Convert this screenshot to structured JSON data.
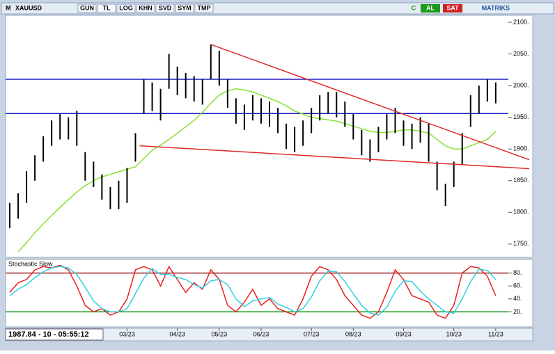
{
  "toolbar": {
    "logo": "M",
    "symbol": "XAUUSD",
    "buttons": [
      "GUN",
      "TL",
      "LOG",
      "KHN",
      "SVD",
      "SYM",
      "TMP"
    ],
    "right_buttons": [
      "C",
      "AL",
      "SAT"
    ],
    "brand": "MATRIKS"
  },
  "status": "1987.84 - 10 - 05:55:12",
  "chart_data": [
    {
      "type": "bar",
      "categories": [
        null,
        null,
        null,
        null,
        null,
        null,
        null,
        null,
        null,
        null,
        null,
        null,
        null,
        null,
        "03/23",
        null,
        null,
        null,
        null,
        null,
        "04/23",
        null,
        null,
        null,
        null,
        "05/23",
        null,
        null,
        null,
        null,
        "06/23",
        null,
        null,
        null,
        null,
        null,
        "07/23",
        null,
        null,
        null,
        null,
        "08/23",
        null,
        null,
        null,
        null,
        null,
        "09/23",
        null,
        null,
        null,
        null,
        null,
        "10/23",
        null,
        null,
        null,
        null,
        "11/23"
      ],
      "xlim": [
        -0.5,
        62
      ],
      "high": [
        1815,
        1830,
        1865,
        1890,
        1920,
        1945,
        1955,
        1950,
        1960,
        1895,
        1880,
        1860,
        1840,
        1850,
        1870,
        1925,
        2010,
        2005,
        1995,
        2050,
        2030,
        2020,
        2015,
        2010,
        2065,
        2055,
        2010,
        1980,
        1970,
        1985,
        1980,
        1975,
        1965,
        1940,
        1935,
        1945,
        1965,
        1985,
        1990,
        1990,
        1975,
        1955,
        1930,
        1915,
        1935,
        1955,
        1965,
        1945,
        1940,
        1950,
        1940,
        1880,
        1845,
        1880,
        1925,
        1985,
        2000,
        2010,
        2005
      ],
      "low": [
        1775,
        1790,
        1815,
        1850,
        1880,
        1905,
        1915,
        1915,
        1905,
        1850,
        1840,
        1820,
        1805,
        1805,
        1815,
        1880,
        1955,
        1960,
        1945,
        1995,
        1985,
        1980,
        1975,
        1970,
        2010,
        2000,
        1965,
        1940,
        1930,
        1945,
        1940,
        1935,
        1925,
        1900,
        1895,
        1905,
        1925,
        1945,
        1955,
        1950,
        1935,
        1915,
        1890,
        1880,
        1895,
        1915,
        1925,
        1905,
        1900,
        1910,
        1880,
        1835,
        1810,
        1840,
        1875,
        1935,
        1955,
        1975,
        1972
      ],
      "ma": {
        "color": "#88e030",
        "values": [
          null,
          1738,
          1752,
          1768,
          1782,
          1795,
          1808,
          1820,
          1832,
          1842,
          1850,
          1856,
          1860,
          1864,
          1868,
          1872,
          1885,
          1898,
          1906,
          1915,
          1925,
          1935,
          1945,
          1958,
          1972,
          1985,
          1992,
          1995,
          1993,
          1990,
          1985,
          1980,
          1975,
          1968,
          1960,
          1955,
          1950,
          1948,
          1946,
          1944,
          1940,
          1936,
          1932,
          1928,
          1926,
          1926,
          1928,
          1930,
          1930,
          1928,
          1925,
          1915,
          1905,
          1900,
          1900,
          1905,
          1910,
          1915,
          1928
        ]
      },
      "bar_color": "#000000",
      "hlines": [
        {
          "value": 2010,
          "color": "#1a1ac8"
        },
        {
          "value": 1956,
          "color": "#1a1ac8"
        }
      ],
      "trendlines": [
        {
          "x": [
            24,
            62
          ],
          "y": [
            2065,
            1883
          ],
          "color": "#e02828"
        },
        {
          "x": [
            15.5,
            62
          ],
          "y": [
            1905,
            1869
          ],
          "color": "#e02828"
        }
      ],
      "ylim": [
        1729,
        2111
      ],
      "yticks": [
        {
          "value": 1750,
          "label": "1750."
        },
        {
          "value": 1800,
          "label": "1800."
        },
        {
          "value": 1850,
          "label": "1850."
        },
        {
          "value": 1900,
          "label": "1900."
        },
        {
          "value": 1950,
          "label": "1950."
        },
        {
          "value": 2000,
          "label": "2000."
        },
        {
          "value": 2050,
          "label": "2050."
        },
        {
          "value": 2100,
          "label": "2100."
        }
      ]
    },
    {
      "type": "line",
      "title": "Stochastic Slow",
      "ylim": [
        0,
        100
      ],
      "yticks": [
        {
          "value": 20,
          "label": "20."
        },
        {
          "value": 40,
          "label": "40."
        },
        {
          "value": 60,
          "label": "60."
        },
        {
          "value": 80,
          "label": "80."
        }
      ],
      "hlines": [
        {
          "value": 80,
          "color": "#a02020"
        },
        {
          "value": 20,
          "color": "#109010"
        }
      ],
      "series": [
        {
          "color": "#e82020",
          "values": [
            50,
            65,
            70,
            85,
            90,
            88,
            92,
            85,
            60,
            30,
            20,
            25,
            15,
            20,
            40,
            85,
            90,
            85,
            60,
            90,
            70,
            50,
            65,
            55,
            85,
            70,
            30,
            20,
            35,
            55,
            30,
            40,
            25,
            20,
            15,
            40,
            75,
            90,
            85,
            70,
            45,
            30,
            15,
            10,
            20,
            50,
            85,
            70,
            45,
            40,
            35,
            15,
            10,
            30,
            80,
            90,
            88,
            75,
            45
          ]
        },
        {
          "color": "#30d0e0",
          "values": [
            45,
            55,
            62,
            73,
            82,
            88,
            90,
            88,
            78,
            58,
            37,
            25,
            20,
            20,
            25,
            48,
            72,
            87,
            78,
            78,
            73,
            70,
            62,
            57,
            68,
            70,
            62,
            40,
            28,
            37,
            40,
            42,
            32,
            27,
            20,
            25,
            43,
            68,
            83,
            82,
            67,
            48,
            30,
            18,
            15,
            27,
            52,
            68,
            67,
            52,
            40,
            30,
            20,
            18,
            40,
            67,
            86,
            84,
            70
          ]
        }
      ]
    }
  ]
}
